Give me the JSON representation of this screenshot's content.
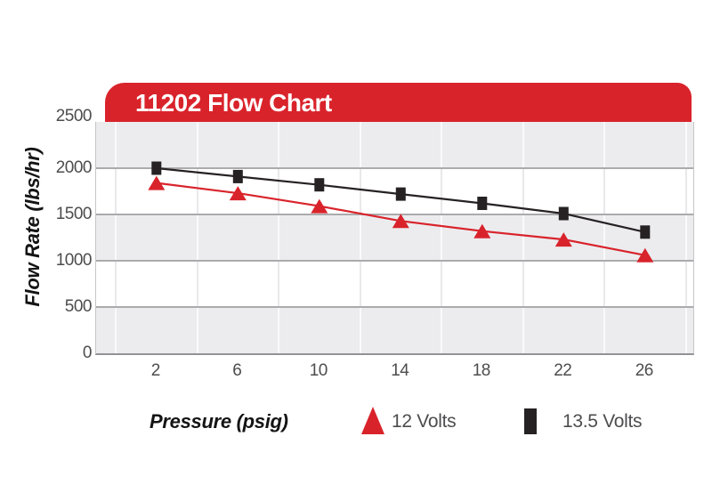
{
  "header": {
    "title": "11202 Flow Chart"
  },
  "colors": {
    "brand_red": "#D9232B",
    "series_black": "#262223",
    "band_gray": "#ECECEE",
    "band_white": "#FFFFFF",
    "h_gridline": "#ABABAD",
    "v_gridline_on_gray": "#FAFAFB",
    "v_gridline_on_white": "#E9E9EB",
    "axis_text": "#4D4D4F",
    "legend_text": "#4D4D4F"
  },
  "chart_data": {
    "type": "line",
    "title": "11202 Flow Chart",
    "xlabel": "Pressure (psig)",
    "ylabel": "Flow Rate (lbs/hr)",
    "categories": [
      2,
      6,
      10,
      14,
      18,
      22,
      26
    ],
    "yticks": [
      2500,
      2000,
      1500,
      1000,
      500,
      0
    ],
    "ylim": [
      0,
      2500
    ],
    "xlim_note": "category axis, evenly spaced",
    "grid": "horizontal 500-unit gray/white bands with gridlines; faint vertical category separators",
    "legend_position": "bottom",
    "series": [
      {
        "name": "13.5 Volts",
        "marker": "square",
        "color_key": "series_black",
        "values": [
          2000,
          1910,
          1820,
          1720,
          1620,
          1510,
          1310
        ]
      },
      {
        "name": "12 Volts",
        "marker": "triangle",
        "color_key": "brand_red",
        "values": [
          1840,
          1730,
          1590,
          1430,
          1320,
          1230,
          1060
        ]
      }
    ]
  }
}
